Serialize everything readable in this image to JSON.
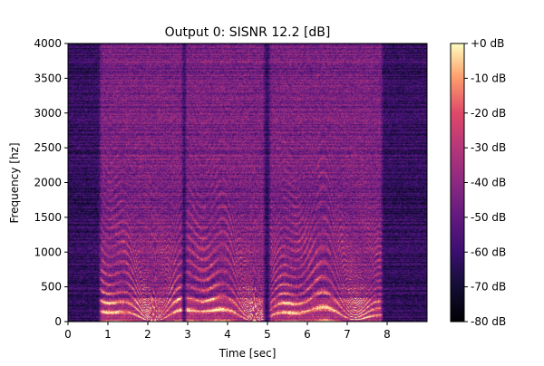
{
  "chart_data": {
    "type": "heatmap",
    "title": "Output 0: SISNR 12.2 [dB]",
    "xlabel": "Time [sec]",
    "ylabel": "Frequency [hz]",
    "xlim": [
      0,
      9.0
    ],
    "ylim": [
      0,
      4000
    ],
    "xticks": [
      "0",
      "1",
      "2",
      "3",
      "4",
      "5",
      "6",
      "7",
      "8"
    ],
    "yticks": [
      "0",
      "500",
      "1000",
      "1500",
      "2000",
      "2500",
      "3000",
      "3500",
      "4000"
    ],
    "colorbar": {
      "ticks": [
        "+0 dB",
        "-10 dB",
        "-20 dB",
        "-30 dB",
        "-40 dB",
        "-50 dB",
        "-60 dB",
        "-70 dB",
        "-80 dB"
      ],
      "range": [
        -80,
        0
      ],
      "colormap": "magma"
    },
    "speech_segments_sec": [
      [
        0.75,
        2.9
      ],
      [
        2.9,
        4.95
      ],
      [
        5.0,
        7.9
      ]
    ],
    "colors": {
      "low": "#000004",
      "mid_low": "#3b0f70",
      "mid": "#8c2981",
      "mid_high": "#de4968",
      "high": "#fe9f6d",
      "top": "#fcfdbf"
    }
  }
}
